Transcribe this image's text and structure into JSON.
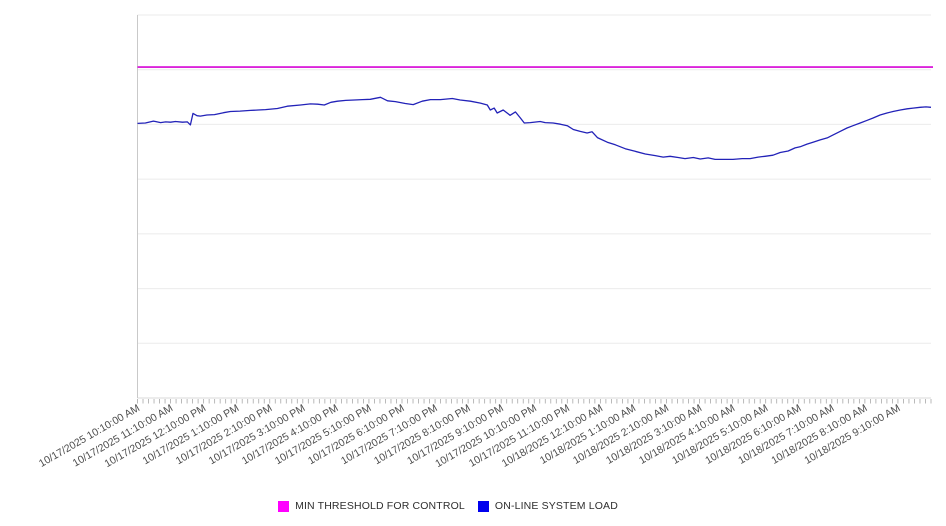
{
  "chart_data": {
    "type": "line",
    "title": "",
    "x_axis": {
      "tick_labels": [
        "10/17/2025 10:10:00 AM",
        "10/17/2025 11:10:00 AM",
        "10/17/2025 12:10:00 PM",
        "10/17/2025 1:10:00 PM",
        "10/17/2025 2:10:00 PM",
        "10/17/2025 3:10:00 PM",
        "10/17/2025 4:10:00 PM",
        "10/17/2025 5:10:00 PM",
        "10/17/2025 6:10:00 PM",
        "10/17/2025 7:10:00 PM",
        "10/17/2025 8:10:00 PM",
        "10/17/2025 9:10:00 PM",
        "10/17/2025 10:10:00 PM",
        "10/17/2025 11:10:00 PM",
        "10/18/2025 12:10:00 AM",
        "10/18/2025 1:10:00 AM",
        "10/18/2025 2:10:00 AM",
        "10/18/2025 3:10:00 AM",
        "10/18/2025 4:10:00 AM",
        "10/18/2025 5:10:00 AM",
        "10/18/2025 6:10:00 AM",
        "10/18/2025 7:10:00 AM",
        "10/18/2025 8:10:00 AM",
        "10/18/2025 9:10:00 AM"
      ],
      "label_rotation_deg": -30,
      "minor_ticks": 145,
      "minor_tick_interval": "10 minutes"
    },
    "y_axis": {
      "labels_visible": false,
      "range": [
        0,
        100
      ],
      "gridlines": 8
    },
    "legend_position": "bottom-center",
    "series": [
      {
        "name": "MIN THRESHOLD FOR CONTROL",
        "type": "constant-line",
        "color": "#ff00ff",
        "line_color": "#d602d6",
        "value": 86.4
      },
      {
        "name": "ON-LINE SYSTEM LOAD",
        "type": "line",
        "color": "#0000ee",
        "line_color": "#2222b8",
        "x_unit": "hours_after_first_tick",
        "points": [
          [
            0,
            71.7
          ],
          [
            0.24,
            71.8
          ],
          [
            0.48,
            72.3
          ],
          [
            0.54,
            72.2
          ],
          [
            0.7,
            71.9
          ],
          [
            0.85,
            72.1
          ],
          [
            1.0,
            72.0
          ],
          [
            1.15,
            72.2
          ],
          [
            1.36,
            72.0
          ],
          [
            1.51,
            72.1
          ],
          [
            1.6,
            71.3
          ],
          [
            1.68,
            74.3
          ],
          [
            1.8,
            73.7
          ],
          [
            1.9,
            73.6
          ],
          [
            2.1,
            73.9
          ],
          [
            2.33,
            74.0
          ],
          [
            2.6,
            74.5
          ],
          [
            2.81,
            74.8
          ],
          [
            3.1,
            74.9
          ],
          [
            3.42,
            75.1
          ],
          [
            3.65,
            75.2
          ],
          [
            3.87,
            75.3
          ],
          [
            4.23,
            75.6
          ],
          [
            4.53,
            76.2
          ],
          [
            4.93,
            76.5
          ],
          [
            5.23,
            76.8
          ],
          [
            5.45,
            76.7
          ],
          [
            5.65,
            76.5
          ],
          [
            5.85,
            77.2
          ],
          [
            6.05,
            77.5
          ],
          [
            6.3,
            77.7
          ],
          [
            6.56,
            77.8
          ],
          [
            6.8,
            77.9
          ],
          [
            7.04,
            78.0
          ],
          [
            7.35,
            78.5
          ],
          [
            7.56,
            77.6
          ],
          [
            7.8,
            77.4
          ],
          [
            8.1,
            76.9
          ],
          [
            8.34,
            76.6
          ],
          [
            8.61,
            77.5
          ],
          [
            8.86,
            77.9
          ],
          [
            9.16,
            77.9
          ],
          [
            9.52,
            78.2
          ],
          [
            9.76,
            77.8
          ],
          [
            10.07,
            77.5
          ],
          [
            10.37,
            77.0
          ],
          [
            10.58,
            76.5
          ],
          [
            10.67,
            75.2
          ],
          [
            10.79,
            75.7
          ],
          [
            10.88,
            74.4
          ],
          [
            11.06,
            75.2
          ],
          [
            11.27,
            73.8
          ],
          [
            11.43,
            74.7
          ],
          [
            11.58,
            73.1
          ],
          [
            11.7,
            71.8
          ],
          [
            11.88,
            71.9
          ],
          [
            12.18,
            72.2
          ],
          [
            12.33,
            71.9
          ],
          [
            12.57,
            71.8
          ],
          [
            12.79,
            71.5
          ],
          [
            13.0,
            71.1
          ],
          [
            13.18,
            70.1
          ],
          [
            13.39,
            69.6
          ],
          [
            13.6,
            69.2
          ],
          [
            13.75,
            69.5
          ],
          [
            13.91,
            68.0
          ],
          [
            14.21,
            66.8
          ],
          [
            14.45,
            66.1
          ],
          [
            14.75,
            65.1
          ],
          [
            15.05,
            64.4
          ],
          [
            15.36,
            63.7
          ],
          [
            15.66,
            63.3
          ],
          [
            15.9,
            62.9
          ],
          [
            16.11,
            63.1
          ],
          [
            16.35,
            62.8
          ],
          [
            16.56,
            62.5
          ],
          [
            16.81,
            62.8
          ],
          [
            17.02,
            62.4
          ],
          [
            17.26,
            62.7
          ],
          [
            17.47,
            62.3
          ],
          [
            17.77,
            62.3
          ],
          [
            18.01,
            62.3
          ],
          [
            18.29,
            62.5
          ],
          [
            18.53,
            62.5
          ],
          [
            18.77,
            62.9
          ],
          [
            18.98,
            63.1
          ],
          [
            19.22,
            63.4
          ],
          [
            19.44,
            64.1
          ],
          [
            19.68,
            64.5
          ],
          [
            19.89,
            65.3
          ],
          [
            20.04,
            65.6
          ],
          [
            20.25,
            66.3
          ],
          [
            20.43,
            66.8
          ],
          [
            20.65,
            67.4
          ],
          [
            20.86,
            67.9
          ],
          [
            21.04,
            68.7
          ],
          [
            21.25,
            69.6
          ],
          [
            21.46,
            70.5
          ],
          [
            21.64,
            71.1
          ],
          [
            21.86,
            71.8
          ],
          [
            22.07,
            72.5
          ],
          [
            22.25,
            73.1
          ],
          [
            22.46,
            73.9
          ],
          [
            22.67,
            74.4
          ],
          [
            22.85,
            74.8
          ],
          [
            23.07,
            75.2
          ],
          [
            23.28,
            75.5
          ],
          [
            23.46,
            75.7
          ],
          [
            23.67,
            75.9
          ],
          [
            23.85,
            76.0
          ],
          [
            24.0,
            75.9
          ]
        ]
      }
    ],
    "colors": {
      "gridline": "#ebebeb",
      "axis_line": "#d8d8d8",
      "plot_border_left": "#c9c9c9",
      "tick": "#a8a8a8",
      "x_label_text": "#4d4d4d",
      "legend_text": "#2e2e2e",
      "background": "#ffffff"
    }
  }
}
